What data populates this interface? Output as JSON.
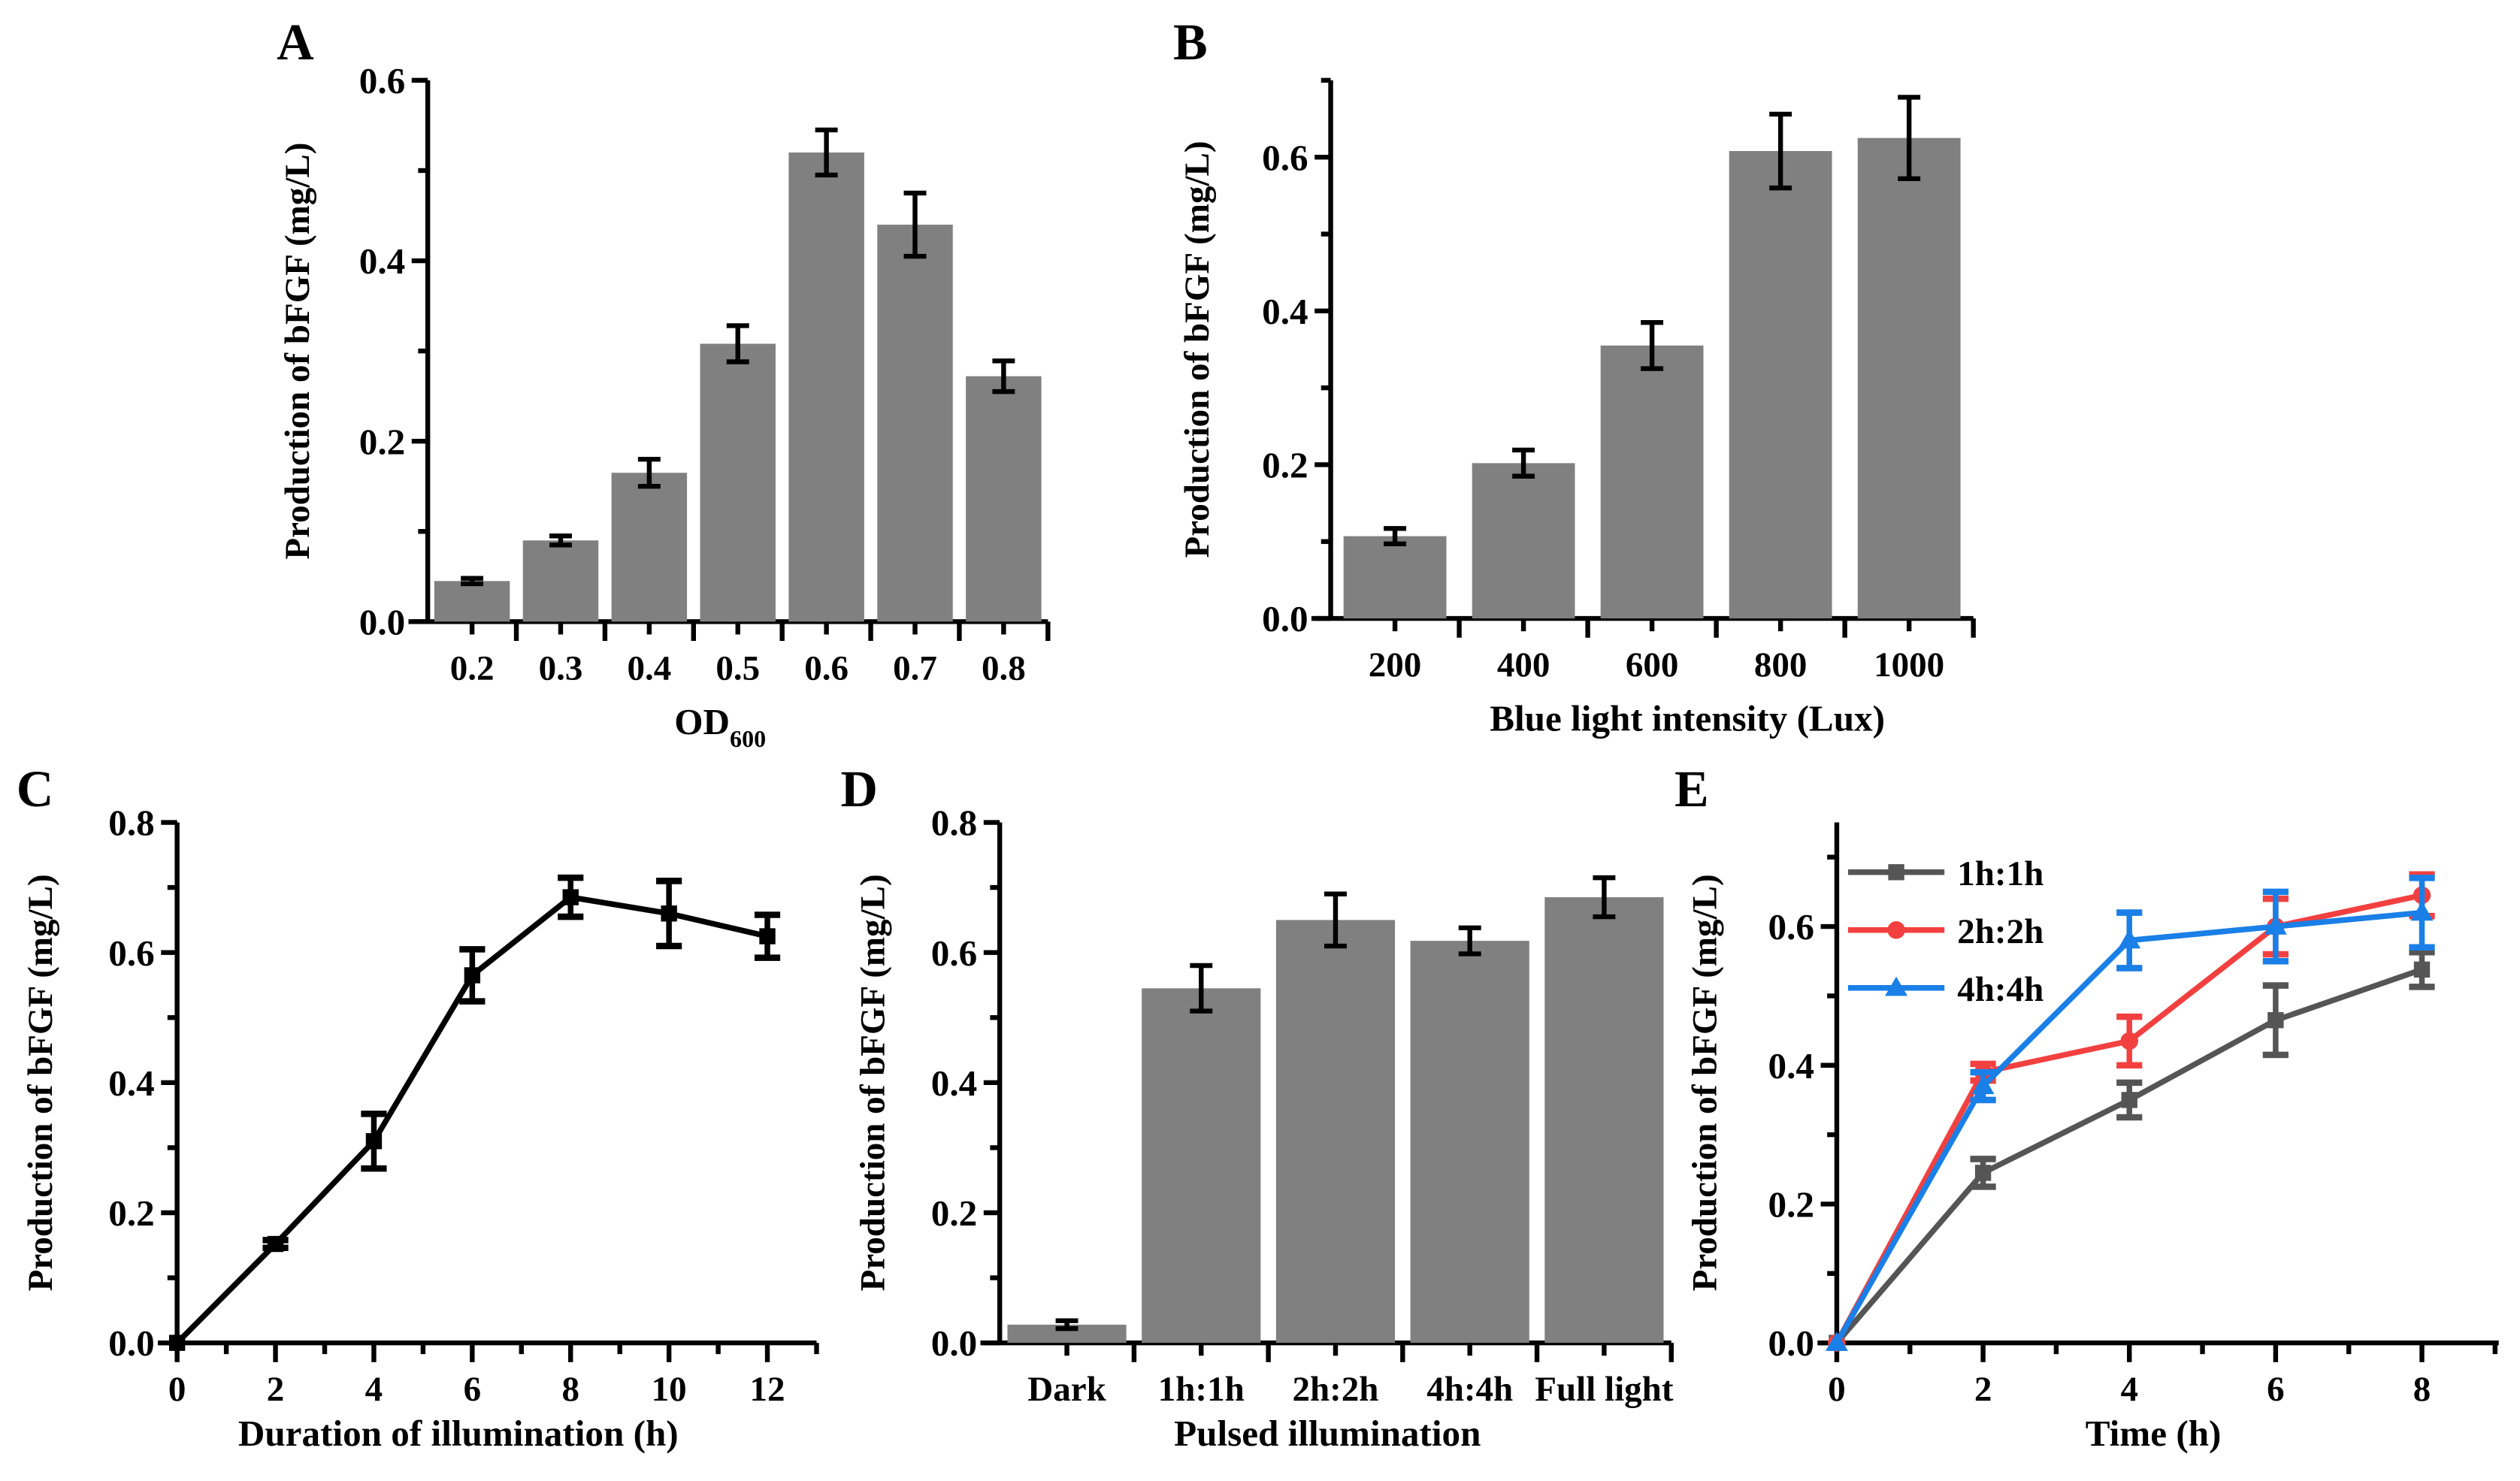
{
  "chart_data": [
    {
      "panel": "A",
      "type": "bar",
      "xlabel": "OD",
      "xlabel_sub": "600",
      "ylabel": "Production of bFGF (mg/L)",
      "ylim": [
        0,
        0.6
      ],
      "yticks": [
        "0.0",
        "0.2",
        "0.4",
        "0.6"
      ],
      "categories": [
        "0.2",
        "0.3",
        "0.4",
        "0.5",
        "0.6",
        "0.7",
        "0.8"
      ],
      "values": [
        0.045,
        0.09,
        0.165,
        0.308,
        0.52,
        0.44,
        0.272
      ],
      "errors": [
        0.003,
        0.005,
        0.015,
        0.02,
        0.025,
        0.035,
        0.017
      ],
      "color": "#808080"
    },
    {
      "panel": "B",
      "type": "bar",
      "xlabel": "Blue light intensity (Lux)",
      "ylabel": "Production of bFGF (mg/L)",
      "ylim": [
        0,
        0.7
      ],
      "yticks": [
        "0.0",
        "0.2",
        "0.4",
        "0.6"
      ],
      "categories": [
        "200",
        "400",
        "600",
        "800",
        "1000"
      ],
      "values": [
        0.107,
        0.202,
        0.355,
        0.608,
        0.625
      ],
      "errors": [
        0.01,
        0.017,
        0.03,
        0.048,
        0.053
      ],
      "color": "#808080"
    },
    {
      "panel": "C",
      "type": "line",
      "xlabel": "Duration of illumination (h)",
      "ylabel": "Production of bFGF (mg/L)",
      "ylim": [
        0,
        0.8
      ],
      "xlim": [
        0,
        13
      ],
      "yticks": [
        "0.0",
        "0.2",
        "0.4",
        "0.6",
        "0.8"
      ],
      "xticks": [
        "0",
        "2",
        "4",
        "6",
        "8",
        "10",
        "12"
      ],
      "series": [
        {
          "name": "",
          "color": "#000000",
          "marker": "square",
          "x": [
            0,
            2,
            4,
            6,
            8,
            10,
            12
          ],
          "values": [
            0,
            0.152,
            0.31,
            0.565,
            0.685,
            0.66,
            0.625
          ],
          "errors": [
            0,
            0.006,
            0.042,
            0.04,
            0.03,
            0.05,
            0.033
          ]
        }
      ]
    },
    {
      "panel": "D",
      "type": "bar",
      "xlabel": "Pulsed illumination",
      "ylabel": "Production of bFGF (mg/L)",
      "ylim": [
        0,
        0.8
      ],
      "yticks": [
        "0.0",
        "0.2",
        "0.4",
        "0.6",
        "0.8"
      ],
      "categories": [
        "Dark",
        "1h:1h",
        "2h:2h",
        "4h:4h",
        "Full light"
      ],
      "values": [
        0.028,
        0.545,
        0.65,
        0.618,
        0.685
      ],
      "errors": [
        0.006,
        0.035,
        0.04,
        0.02,
        0.03
      ],
      "color": "#808080"
    },
    {
      "panel": "E",
      "type": "line",
      "xlabel": "Time (h)",
      "ylabel": "Production of bFGF (mg/L)",
      "ylim": [
        0,
        0.75
      ],
      "xlim": [
        0,
        9.05
      ],
      "yticks": [
        "0.0",
        "0.2",
        "0.4",
        "0.6"
      ],
      "xticks": [
        "0",
        "2",
        "4",
        "6",
        "8"
      ],
      "legend": "top-left",
      "series": [
        {
          "name": "1h:1h",
          "color": "#555555",
          "marker": "square",
          "x": [
            0,
            2,
            4,
            6,
            8
          ],
          "values": [
            0,
            0.245,
            0.35,
            0.465,
            0.538
          ],
          "errors": [
            0,
            0.02,
            0.025,
            0.05,
            0.025
          ]
        },
        {
          "name": "2h:2h",
          "color": "#f24040",
          "marker": "circle",
          "x": [
            0,
            2,
            4,
            6,
            8
          ],
          "values": [
            0,
            0.39,
            0.435,
            0.6,
            0.645
          ],
          "errors": [
            0,
            0.012,
            0.035,
            0.04,
            0.03
          ]
        },
        {
          "name": "4h:4h",
          "color": "#1a7fe6",
          "marker": "triangle",
          "x": [
            0,
            2,
            4,
            6,
            8
          ],
          "values": [
            0,
            0.37,
            0.58,
            0.6,
            0.62
          ],
          "errors": [
            0,
            0.02,
            0.04,
            0.05,
            0.05
          ]
        }
      ]
    }
  ]
}
